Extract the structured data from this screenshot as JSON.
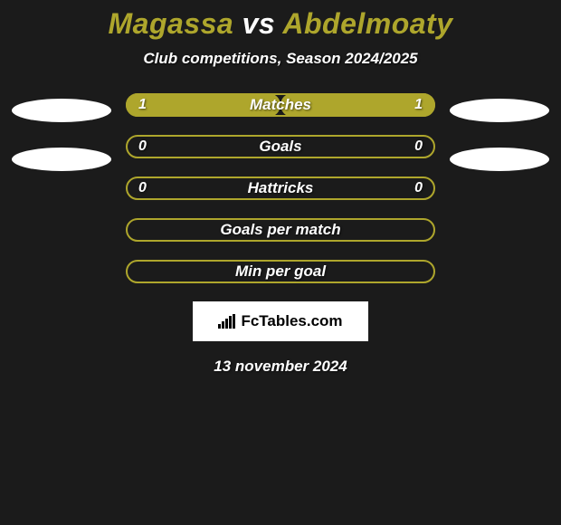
{
  "background_color": "#1b1b1b",
  "title": {
    "player1": "Magassa",
    "player2": "Abdelmoaty",
    "vs_text": "vs",
    "player1_color": "#aea62c",
    "player2_color": "#aea62c",
    "vs_color": "#ffffff"
  },
  "subtitle": "Club competitions, Season 2024/2025",
  "accent_color": "#aea62c",
  "ellipse_color": "#ffffff",
  "stats": [
    {
      "label": "Matches",
      "left_value": "1",
      "right_value": "1",
      "left_fill_pct": 50,
      "right_fill_pct": 50,
      "show_left_ellipse": true,
      "show_right_ellipse": true,
      "show_values": true
    },
    {
      "label": "Goals",
      "left_value": "0",
      "right_value": "0",
      "left_fill_pct": 0,
      "right_fill_pct": 0,
      "show_left_ellipse": true,
      "show_right_ellipse": true,
      "show_values": true
    },
    {
      "label": "Hattricks",
      "left_value": "0",
      "right_value": "0",
      "left_fill_pct": 0,
      "right_fill_pct": 0,
      "show_left_ellipse": false,
      "show_right_ellipse": false,
      "show_values": true
    },
    {
      "label": "Goals per match",
      "left_value": "",
      "right_value": "",
      "left_fill_pct": 0,
      "right_fill_pct": 0,
      "show_left_ellipse": false,
      "show_right_ellipse": false,
      "show_values": false
    },
    {
      "label": "Min per goal",
      "left_value": "",
      "right_value": "",
      "left_fill_pct": 0,
      "right_fill_pct": 0,
      "show_left_ellipse": false,
      "show_right_ellipse": false,
      "show_values": false
    }
  ],
  "logo_text": "FcTables.com",
  "date": "13 november 2024"
}
